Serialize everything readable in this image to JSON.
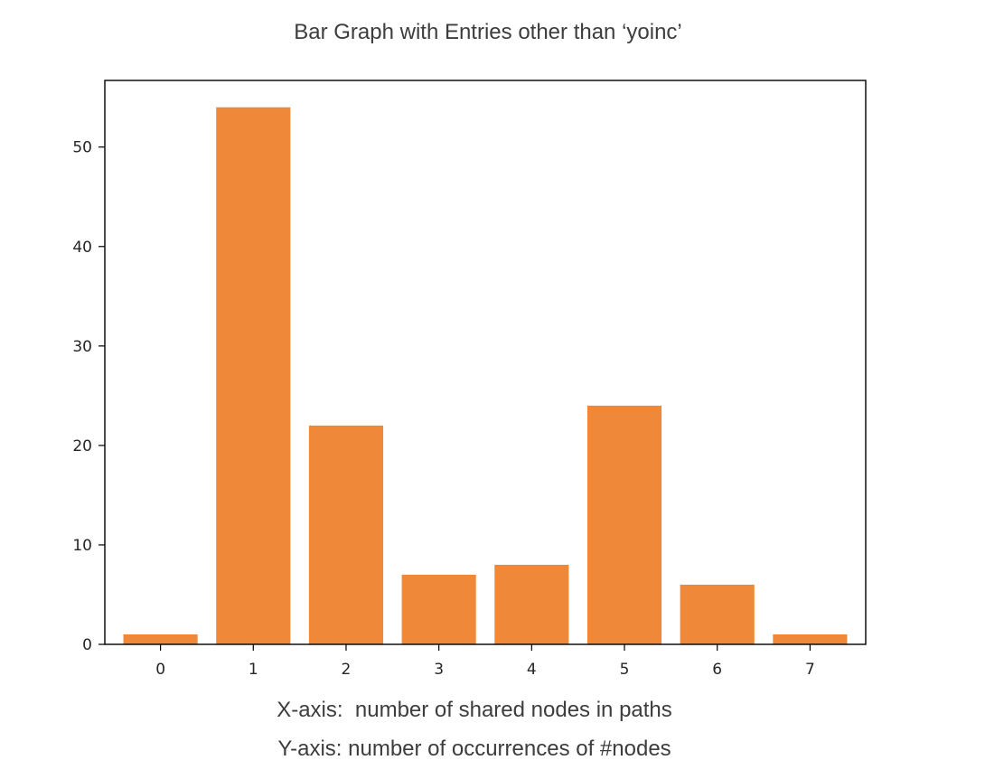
{
  "caption": {
    "x_axis_note": "X-axis:  number of shared nodes in paths",
    "y_axis_note": "Y-axis: number of occurrences of #nodes"
  },
  "chart_data": {
    "type": "bar",
    "title": "Bar Graph with Entries other than ‘yoinc’",
    "categories": [
      "0",
      "1",
      "2",
      "3",
      "4",
      "5",
      "6",
      "7"
    ],
    "values": [
      1,
      54,
      22,
      7,
      8,
      24,
      6,
      1
    ],
    "xlabel": "",
    "ylabel": "",
    "ylim": [
      0,
      56.7
    ],
    "yticks": [
      0,
      10,
      20,
      30,
      40,
      50
    ],
    "bar_color": "#f0883a",
    "grid": false,
    "legend": "none"
  }
}
